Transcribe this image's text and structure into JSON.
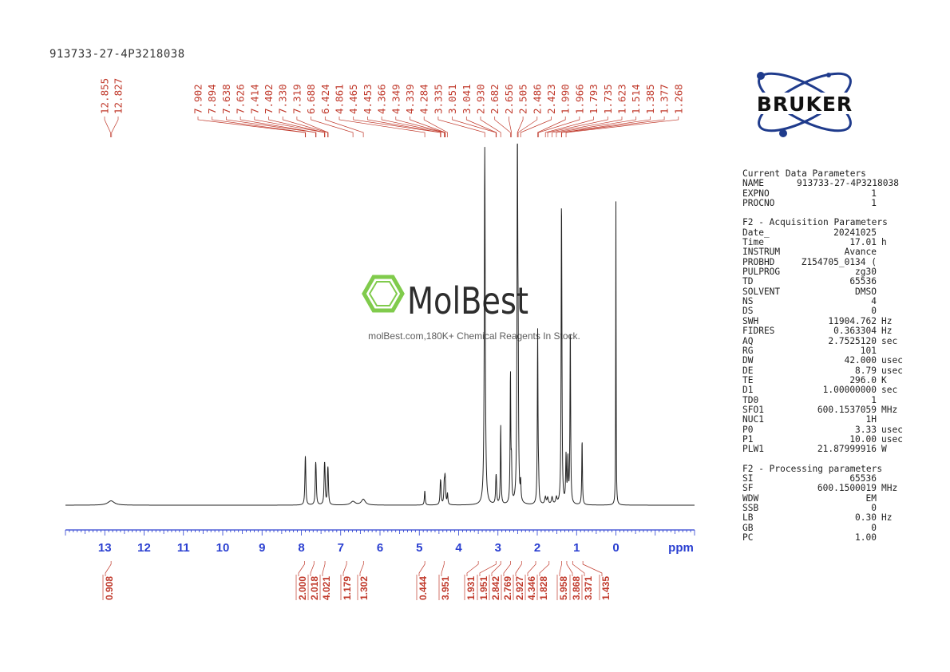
{
  "sample_id": "913733-27-4P3218038",
  "watermark": {
    "brand": "MolBest",
    "tagline": "molBest.com,180K+ Chemical Reagents In Stock."
  },
  "logo": {
    "text": "BRUKER"
  },
  "colors": {
    "peak_label": "#c0392b",
    "axis": "#2a3fd1",
    "spectrum": "#222222",
    "logo_blue": "#1f3b8c",
    "watermark_green": "#7ac943"
  },
  "parameters": {
    "current": {
      "title": "Current Data Parameters",
      "rows": [
        {
          "k": "NAME",
          "v": "913733-27-4P3218038",
          "u": ""
        },
        {
          "k": "EXPNO",
          "v": "1",
          "u": ""
        },
        {
          "k": "PROCNO",
          "v": "1",
          "u": ""
        }
      ]
    },
    "acquisition": {
      "title": "F2 - Acquisition Parameters",
      "rows": [
        {
          "k": "Date_",
          "v": "20241025",
          "u": ""
        },
        {
          "k": "Time",
          "v": "17.01",
          "u": "h"
        },
        {
          "k": "INSTRUM",
          "v": "Avance",
          "u": ""
        },
        {
          "k": "PROBHD",
          "v": "Z154705_0134 (",
          "u": ""
        },
        {
          "k": "PULPROG",
          "v": "zg30",
          "u": ""
        },
        {
          "k": "TD",
          "v": "65536",
          "u": ""
        },
        {
          "k": "SOLVENT",
          "v": "DMSO",
          "u": ""
        },
        {
          "k": "NS",
          "v": "4",
          "u": ""
        },
        {
          "k": "DS",
          "v": "0",
          "u": ""
        },
        {
          "k": "SWH",
          "v": "11904.762",
          "u": "Hz"
        },
        {
          "k": "FIDRES",
          "v": "0.363304",
          "u": "Hz"
        },
        {
          "k": "AQ",
          "v": "2.7525120",
          "u": "sec"
        },
        {
          "k": "RG",
          "v": "101",
          "u": ""
        },
        {
          "k": "DW",
          "v": "42.000",
          "u": "usec"
        },
        {
          "k": "DE",
          "v": "8.79",
          "u": "usec"
        },
        {
          "k": "TE",
          "v": "296.0",
          "u": "K"
        },
        {
          "k": "D1",
          "v": "1.00000000",
          "u": "sec"
        },
        {
          "k": "TD0",
          "v": "1",
          "u": ""
        },
        {
          "k": "SFO1",
          "v": "600.1537059",
          "u": "MHz"
        },
        {
          "k": "NUC1",
          "v": "1H",
          "u": ""
        },
        {
          "k": "P0",
          "v": "3.33",
          "u": "usec"
        },
        {
          "k": "P1",
          "v": "10.00",
          "u": "usec"
        },
        {
          "k": "PLW1",
          "v": "21.87999916",
          "u": "W"
        }
      ]
    },
    "processing": {
      "title": "F2 - Processing parameters",
      "rows": [
        {
          "k": "SI",
          "v": "65536",
          "u": ""
        },
        {
          "k": "SF",
          "v": "600.1500019",
          "u": "MHz"
        },
        {
          "k": "WDW",
          "v": "EM",
          "u": ""
        },
        {
          "k": "SSB",
          "v": "0",
          "u": ""
        },
        {
          "k": "LB",
          "v": "0.30",
          "u": "Hz"
        },
        {
          "k": "GB",
          "v": "0",
          "u": ""
        },
        {
          "k": "PC",
          "v": "1.00",
          "u": ""
        }
      ]
    }
  },
  "chart_data": {
    "type": "line",
    "xlabel": "ppm",
    "xlim": [
      14.0,
      -2.0
    ],
    "x_reversed": true,
    "ticks": [
      13,
      12,
      11,
      10,
      9,
      8,
      7,
      6,
      5,
      4,
      3,
      2,
      1,
      0
    ],
    "peak_labels": [
      "12.855",
      "12.827",
      "7.902",
      "7.894",
      "7.638",
      "7.626",
      "7.414",
      "7.402",
      "7.330",
      "7.319",
      "6.688",
      "6.424",
      "4.861",
      "4.465",
      "4.453",
      "4.366",
      "4.349",
      "4.339",
      "4.284",
      "3.335",
      "3.051",
      "3.041",
      "2.930",
      "2.682",
      "2.656",
      "2.505",
      "2.486",
      "2.423",
      "1.990",
      "1.966",
      "1.793",
      "1.735",
      "1.623",
      "1.514",
      "1.385",
      "1.377",
      "1.268"
    ],
    "peaks": [
      {
        "ppm": 12.84,
        "h": 0.012,
        "w": 0.1
      },
      {
        "ppm": 7.902,
        "h": 0.08,
        "w": 0.012
      },
      {
        "ppm": 7.894,
        "h": 0.07,
        "w": 0.012
      },
      {
        "ppm": 7.638,
        "h": 0.085,
        "w": 0.012
      },
      {
        "ppm": 7.626,
        "h": 0.06,
        "w": 0.012
      },
      {
        "ppm": 7.414,
        "h": 0.075,
        "w": 0.012
      },
      {
        "ppm": 7.402,
        "h": 0.07,
        "w": 0.012
      },
      {
        "ppm": 7.33,
        "h": 0.065,
        "w": 0.012
      },
      {
        "ppm": 7.319,
        "h": 0.06,
        "w": 0.012
      },
      {
        "ppm": 6.688,
        "h": 0.01,
        "w": 0.07
      },
      {
        "ppm": 6.424,
        "h": 0.016,
        "w": 0.06
      },
      {
        "ppm": 4.861,
        "h": 0.04,
        "w": 0.012
      },
      {
        "ppm": 4.465,
        "h": 0.045,
        "w": 0.012
      },
      {
        "ppm": 4.453,
        "h": 0.04,
        "w": 0.012
      },
      {
        "ppm": 4.366,
        "h": 0.05,
        "w": 0.012
      },
      {
        "ppm": 4.349,
        "h": 0.045,
        "w": 0.012
      },
      {
        "ppm": 4.339,
        "h": 0.04,
        "w": 0.012
      },
      {
        "ppm": 4.284,
        "h": 0.03,
        "w": 0.012
      },
      {
        "ppm": 3.335,
        "h": 0.99,
        "w": 0.014
      },
      {
        "ppm": 3.051,
        "h": 0.05,
        "w": 0.012
      },
      {
        "ppm": 3.041,
        "h": 0.045,
        "w": 0.012
      },
      {
        "ppm": 2.93,
        "h": 0.22,
        "w": 0.01
      },
      {
        "ppm": 2.682,
        "h": 0.36,
        "w": 0.01
      },
      {
        "ppm": 2.656,
        "h": 0.1,
        "w": 0.01
      },
      {
        "ppm": 2.505,
        "h": 0.99,
        "w": 0.012
      },
      {
        "ppm": 2.486,
        "h": 0.28,
        "w": 0.01
      },
      {
        "ppm": 2.423,
        "h": 0.05,
        "w": 0.01
      },
      {
        "ppm": 1.99,
        "h": 0.48,
        "w": 0.01
      },
      {
        "ppm": 1.966,
        "h": 0.05,
        "w": 0.01
      },
      {
        "ppm": 1.793,
        "h": 0.02,
        "w": 0.02
      },
      {
        "ppm": 1.735,
        "h": 0.018,
        "w": 0.02
      },
      {
        "ppm": 1.623,
        "h": 0.02,
        "w": 0.02
      },
      {
        "ppm": 1.514,
        "h": 0.018,
        "w": 0.02
      },
      {
        "ppm": 1.385,
        "h": 0.68,
        "w": 0.01
      },
      {
        "ppm": 1.377,
        "h": 0.25,
        "w": 0.01
      },
      {
        "ppm": 1.268,
        "h": 0.13,
        "w": 0.012
      },
      {
        "ppm": 1.22,
        "h": 0.12,
        "w": 0.012
      },
      {
        "ppm": 1.16,
        "h": 0.49,
        "w": 0.01
      },
      {
        "ppm": 0.86,
        "h": 0.18,
        "w": 0.01
      },
      {
        "ppm": 0.0,
        "h": 0.84,
        "w": 0.006
      }
    ],
    "integrals": [
      {
        "value": "0.908",
        "ppm": 12.84
      },
      {
        "value": "2.000",
        "ppm": 7.92
      },
      {
        "value": "2.018",
        "ppm": 7.68
      },
      {
        "value": "4.021",
        "ppm": 7.4
      },
      {
        "value": "1.179",
        "ppm": 6.85
      },
      {
        "value": "1.302",
        "ppm": 6.42
      },
      {
        "value": "0.444",
        "ppm": 4.86
      },
      {
        "value": "3.951",
        "ppm": 4.37
      },
      {
        "value": "1.931",
        "ppm": 3.5
      },
      {
        "value": "1.951",
        "ppm": 3.05
      },
      {
        "value": "2.842",
        "ppm": 2.93
      },
      {
        "value": "2.769",
        "ppm": 2.68
      },
      {
        "value": "2.927",
        "ppm": 2.4
      },
      {
        "value": "4.346",
        "ppm": 2.04
      },
      {
        "value": "1.828",
        "ppm": 1.7
      },
      {
        "value": "5.958",
        "ppm": 1.38
      },
      {
        "value": "3.868",
        "ppm": 1.25
      },
      {
        "value": "3.371",
        "ppm": 1.1
      },
      {
        "value": "1.435",
        "ppm": 0.84
      }
    ]
  }
}
